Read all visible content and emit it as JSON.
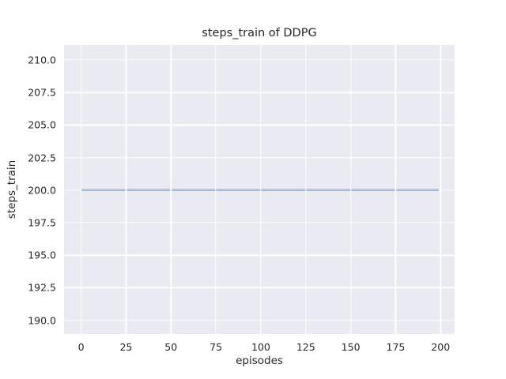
{
  "chart_data": {
    "type": "line",
    "title": "steps_train of DDPG",
    "xlabel": "episodes",
    "ylabel": "steps_train",
    "xlim": [
      -9.5,
      207.8
    ],
    "ylim": [
      188.94,
      211.15
    ],
    "grid": true,
    "legend": "none",
    "xticks": [
      {
        "v": 0,
        "label": "0"
      },
      {
        "v": 25,
        "label": "25"
      },
      {
        "v": 50,
        "label": "50"
      },
      {
        "v": 75,
        "label": "75"
      },
      {
        "v": 100,
        "label": "100"
      },
      {
        "v": 125,
        "label": "125"
      },
      {
        "v": 150,
        "label": "150"
      },
      {
        "v": 175,
        "label": "175"
      },
      {
        "v": 200,
        "label": "200"
      }
    ],
    "yticks": [
      {
        "v": 190.0,
        "label": "190.0"
      },
      {
        "v": 192.5,
        "label": "192.5"
      },
      {
        "v": 195.0,
        "label": "195.0"
      },
      {
        "v": 197.5,
        "label": "197.5"
      },
      {
        "v": 200.0,
        "label": "200.0"
      },
      {
        "v": 202.5,
        "label": "202.5"
      },
      {
        "v": 205.0,
        "label": "205.0"
      },
      {
        "v": 207.5,
        "label": "207.5"
      },
      {
        "v": 210.0,
        "label": "210.0"
      }
    ],
    "series": [
      {
        "name": "steps_train",
        "description": "constant 200 steps per training episode",
        "points": [
          [
            0,
            200
          ],
          [
            199,
            200
          ]
        ],
        "color": "#4C72B0",
        "linewidth": 2.3
      }
    ],
    "colors": {
      "figure_bg": "#ffffff",
      "axes_bg": "#EAEAF2",
      "grid": "#ffffff",
      "text": "#262626",
      "line": "#4C72B0"
    }
  }
}
